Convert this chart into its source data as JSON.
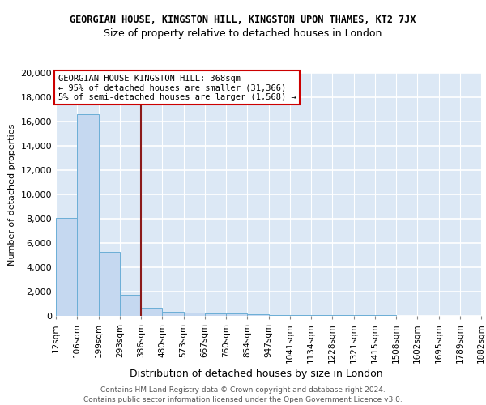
{
  "title1": "GEORGIAN HOUSE, KINGSTON HILL, KINGSTON UPON THAMES, KT2 7JX",
  "title2": "Size of property relative to detached houses in London",
  "xlabel": "Distribution of detached houses by size in London",
  "ylabel": "Number of detached properties",
  "footer1": "Contains HM Land Registry data © Crown copyright and database right 2024.",
  "footer2": "Contains public sector information licensed under the Open Government Licence v3.0.",
  "annotation_line1": "GEORGIAN HOUSE KINGSTON HILL: 368sqm",
  "annotation_line2": "← 95% of detached houses are smaller (31,366)",
  "annotation_line3": "5% of semi-detached houses are larger (1,568) →",
  "bar_values": [
    8100,
    16600,
    5300,
    1750,
    700,
    350,
    250,
    200,
    175,
    150,
    100,
    75,
    60,
    50,
    40,
    35,
    30,
    25,
    20,
    15
  ],
  "bar_labels": [
    "12sqm",
    "106sqm",
    "199sqm",
    "293sqm",
    "386sqm",
    "480sqm",
    "573sqm",
    "667sqm",
    "760sqm",
    "854sqm",
    "947sqm",
    "1041sqm",
    "1134sqm",
    "1228sqm",
    "1321sqm",
    "1415sqm",
    "1508sqm",
    "1602sqm",
    "1695sqm",
    "1789sqm",
    "1882sqm"
  ],
  "bar_color": "#c5d8f0",
  "bar_edge_color": "#6baed6",
  "red_line_x": 4.0,
  "ylim": [
    0,
    20000
  ],
  "yticks": [
    0,
    2000,
    4000,
    6000,
    8000,
    10000,
    12000,
    14000,
    16000,
    18000,
    20000
  ],
  "background_color": "#dce8f5",
  "grid_color": "#ffffff",
  "title1_fontsize": 8.5,
  "title2_fontsize": 9.0,
  "ylabel_fontsize": 8.0,
  "xlabel_fontsize": 9.0,
  "tick_fontsize": 7.5,
  "ytick_fontsize": 8.0,
  "footer_fontsize": 6.5,
  "annotation_fontsize": 7.5
}
